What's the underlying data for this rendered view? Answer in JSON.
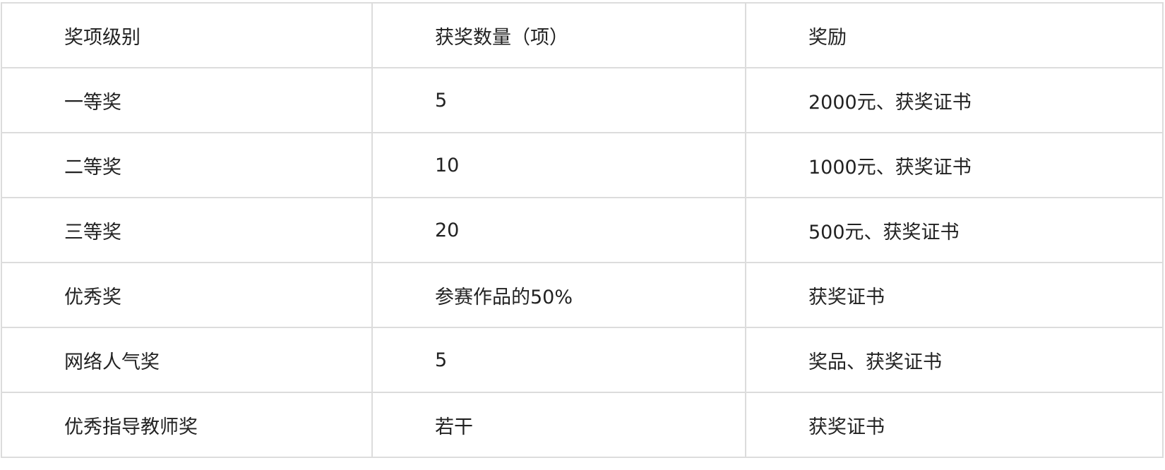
{
  "table": {
    "headers": [
      "奖项级别",
      "获奖数量（项）",
      "奖励"
    ],
    "rows": [
      [
        "一等奖",
        "5",
        "2000元、获奖证书"
      ],
      [
        "二等奖",
        "10",
        "1000元、获奖证书"
      ],
      [
        "三等奖",
        "20",
        "500元、获奖证书"
      ],
      [
        "优秀奖",
        "参赛作品的50%",
        "获奖证书"
      ],
      [
        "网络人气奖",
        "5",
        "奖品、获奖证书"
      ],
      [
        "优秀指导教师奖",
        "若干",
        "获奖证书"
      ]
    ]
  }
}
